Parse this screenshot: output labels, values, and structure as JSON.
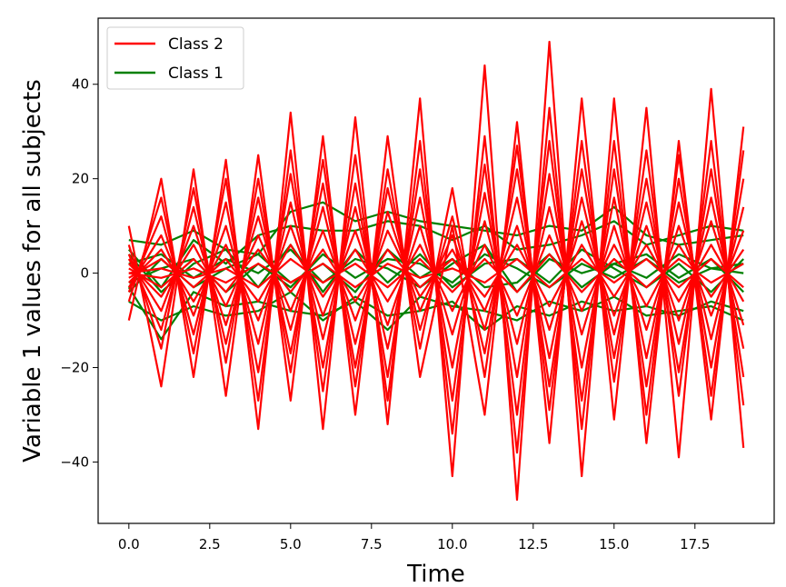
{
  "chart_data": {
    "type": "line",
    "title": "",
    "xlabel": "Time",
    "ylabel": "Variable 1 values for all subjects",
    "xlim": [
      -0.95,
      19.95
    ],
    "ylim": [
      -53,
      54
    ],
    "x_ticks": [
      0.0,
      2.5,
      5.0,
      7.5,
      10.0,
      12.5,
      15.0,
      17.5
    ],
    "x_tick_labels": [
      "0.0",
      "2.5",
      "5.0",
      "7.5",
      "10.0",
      "12.5",
      "15.0",
      "17.5"
    ],
    "y_ticks": [
      -40,
      -20,
      0,
      20,
      40
    ],
    "y_tick_labels": [
      "−40",
      "−20",
      "0",
      "20",
      "40"
    ],
    "legend": {
      "position": "top-left",
      "entries": [
        {
          "label": "Class 2",
          "color": "#ff0000"
        },
        {
          "label": "Class 1",
          "color": "#008000"
        }
      ]
    },
    "x": [
      0,
      1,
      2,
      3,
      4,
      5,
      6,
      7,
      8,
      9,
      10,
      11,
      12,
      13,
      14,
      15,
      16,
      17,
      18,
      19
    ],
    "series": [
      {
        "class": "Class 1",
        "color": "#008000",
        "values": [
          7,
          6,
          9,
          5,
          4,
          13,
          15,
          11,
          13,
          11,
          10,
          9,
          8,
          10,
          9,
          14,
          8,
          6,
          7,
          8
        ]
      },
      {
        "class": "Class 1",
        "color": "#008000",
        "values": [
          5,
          -3,
          7,
          2,
          8,
          10,
          9,
          9,
          11,
          10,
          7,
          10,
          5,
          6,
          8,
          11,
          6,
          8,
          10,
          9
        ]
      },
      {
        "class": "Class 1",
        "color": "#008000",
        "values": [
          -3,
          -14,
          -4,
          -7,
          -6,
          -8,
          -9,
          -6,
          -12,
          -5,
          -7,
          -8,
          -10,
          -6,
          -8,
          -5,
          -9,
          -8,
          -7,
          -10
        ]
      },
      {
        "class": "Class 1",
        "color": "#008000",
        "values": [
          -6,
          -10,
          -7,
          -9,
          -8,
          -4,
          -10,
          -5,
          -9,
          -8,
          -6,
          -12,
          -7,
          -9,
          -6,
          -8,
          -7,
          -9,
          -6,
          -8
        ]
      },
      {
        "class": "Class 1",
        "color": "#008000",
        "values": [
          2,
          4,
          -1,
          3,
          0,
          5,
          -2,
          3,
          1,
          -3,
          2,
          6,
          -4,
          3,
          0,
          2,
          -1,
          4,
          1,
          0
        ]
      },
      {
        "class": "Class 1",
        "color": "#008000",
        "values": [
          -2,
          1,
          3,
          -4,
          2,
          -3,
          4,
          -1,
          3,
          2,
          -2,
          4,
          1,
          -3,
          2,
          -1,
          3,
          -2,
          1,
          2
        ]
      },
      {
        "class": "Class 1",
        "color": "#008000",
        "values": [
          4,
          -4,
          2,
          5,
          -3,
          6,
          -4,
          5,
          -2,
          4,
          -3,
          2,
          3,
          -2,
          5,
          1,
          -3,
          2,
          -4,
          3
        ]
      },
      {
        "class": "Class 1",
        "color": "#008000",
        "values": [
          -4,
          3,
          -3,
          1,
          4,
          -2,
          2,
          -4,
          5,
          -1,
          3,
          -3,
          -2,
          4,
          -3,
          2,
          4,
          -1,
          3,
          -4
        ]
      },
      {
        "class": "Class 2",
        "color": "#ff0000",
        "values": [
          10,
          -24,
          22,
          -26,
          25,
          -27,
          29,
          -30,
          29,
          -22,
          10,
          -30,
          32,
          -36,
          37,
          -31,
          35,
          -39,
          39,
          -37
        ]
      },
      {
        "class": "Class 2",
        "color": "#ff0000",
        "values": [
          -10,
          20,
          -22,
          24,
          -33,
          34,
          -33,
          33,
          -32,
          37,
          -43,
          44,
          -48,
          49,
          -43,
          37,
          -36,
          28,
          -31,
          31
        ]
      },
      {
        "class": "Class 2",
        "color": "#ff0000",
        "values": [
          6,
          -16,
          18,
          -19,
          20,
          -21,
          24,
          -24,
          22,
          -16,
          18,
          -22,
          27,
          -29,
          28,
          -23,
          26,
          -26,
          28,
          -28
        ]
      },
      {
        "class": "Class 2",
        "color": "#ff0000",
        "values": [
          -6,
          16,
          -17,
          20,
          -27,
          26,
          -25,
          25,
          -27,
          28,
          -34,
          29,
          -38,
          35,
          -33,
          28,
          -30,
          25,
          -26,
          26
        ]
      },
      {
        "class": "Class 2",
        "color": "#ff0000",
        "values": [
          4,
          -12,
          14,
          -15,
          16,
          -17,
          19,
          -20,
          18,
          -12,
          12,
          -17,
          22,
          -24,
          22,
          -18,
          20,
          -21,
          22,
          -22
        ]
      },
      {
        "class": "Class 2",
        "color": "#ff0000",
        "values": [
          -4,
          12,
          -13,
          15,
          -21,
          21,
          -20,
          19,
          -22,
          22,
          -27,
          23,
          -30,
          28,
          -27,
          22,
          -24,
          20,
          -20,
          20
        ]
      },
      {
        "class": "Class 2",
        "color": "#ff0000",
        "values": [
          3,
          -8,
          10,
          -11,
          12,
          -12,
          14,
          -15,
          13,
          -8,
          8,
          -12,
          16,
          -18,
          16,
          -13,
          15,
          -15,
          16,
          -16
        ]
      },
      {
        "class": "Class 2",
        "color": "#ff0000",
        "values": [
          -3,
          8,
          -9,
          10,
          -15,
          15,
          -14,
          14,
          -16,
          16,
          -20,
          17,
          -22,
          21,
          -20,
          16,
          -18,
          15,
          -14,
          14
        ]
      },
      {
        "class": "Class 2",
        "color": "#ff0000",
        "values": [
          2,
          -5,
          6,
          -7,
          8,
          -8,
          9,
          -10,
          9,
          -5,
          5,
          -8,
          10,
          -12,
          11,
          -9,
          10,
          -10,
          11,
          -11
        ]
      },
      {
        "class": "Class 2",
        "color": "#ff0000",
        "values": [
          -2,
          5,
          -6,
          6,
          -10,
          10,
          -9,
          9,
          -11,
          10,
          -13,
          11,
          -15,
          14,
          -13,
          10,
          -12,
          10,
          -9,
          9
        ]
      },
      {
        "class": "Class 2",
        "color": "#ff0000",
        "values": [
          1,
          -3,
          3,
          -4,
          5,
          -4,
          5,
          -6,
          5,
          -3,
          3,
          -5,
          6,
          -7,
          6,
          -5,
          6,
          -6,
          6,
          -6
        ]
      },
      {
        "class": "Class 2",
        "color": "#ff0000",
        "values": [
          -1,
          3,
          -3,
          3,
          -6,
          6,
          -5,
          5,
          -6,
          6,
          -8,
          6,
          -9,
          8,
          -8,
          6,
          -7,
          6,
          -5,
          5
        ]
      },
      {
        "class": "Class 2",
        "color": "#ff0000",
        "values": [
          0,
          -1,
          1,
          -2,
          2,
          -2,
          2,
          -3,
          2,
          -1,
          1,
          -2,
          3,
          -3,
          3,
          -2,
          3,
          -3,
          3,
          -3
        ]
      },
      {
        "class": "Class 2",
        "color": "#ff0000",
        "values": [
          0,
          1,
          -1,
          1,
          -3,
          3,
          -2,
          2,
          -3,
          3,
          -4,
          3,
          -4,
          4,
          -4,
          3,
          -3,
          3,
          -2,
          2
        ]
      }
    ]
  }
}
